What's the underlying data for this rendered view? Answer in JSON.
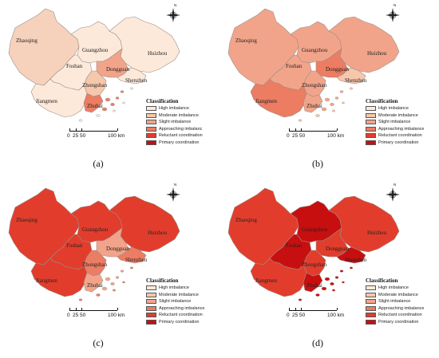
{
  "legend": {
    "title": "Classification",
    "items": [
      {
        "label": "High imbalance",
        "color": "#fde9da"
      },
      {
        "label": "Moderate imbalance",
        "color": "#f6c7ab"
      },
      {
        "label": "Slight imbalance",
        "color": "#f2a48a"
      },
      {
        "label": "Approaching imbalanc",
        "color": "#ec7c62"
      },
      {
        "label": "Reluctant coordination",
        "color": "#e23d2c"
      },
      {
        "label": "Primary coordination",
        "color": "#c80f10"
      }
    ]
  },
  "scale": {
    "labels": [
      "0",
      "25",
      "50",
      "100 km"
    ]
  },
  "compass_label": "N",
  "cities": [
    "Zhaoqing",
    "Guangzhou",
    "Huizhou",
    "Foshan",
    "Dongguan",
    "Shenzhen",
    "Zhongshan",
    "Jiangmen",
    "Zhuhai"
  ],
  "panels": [
    {
      "caption": "(a)",
      "legend_labels": [
        "High imbalance",
        "Moderate imbalance",
        "Slight imbalance",
        "Approaching imbalanc",
        "Reluctant coordination",
        "Primary coordination"
      ],
      "fills": {
        "Zhaoqing": "#f6d2bc",
        "Guangzhou": "#fde9da",
        "Huizhou": "#fde9da",
        "Foshan": "#fde9da",
        "Dongguan": "#f2a48a",
        "Shenzhen": "#fde9da",
        "Zhongshan": "#f6c7ab",
        "Jiangmen": "#fde9da",
        "Zhuhai": "#ec7c62"
      }
    },
    {
      "caption": "(b)",
      "legend_labels": [
        "High imbalance",
        "Moderate imbalance",
        "Slight imbalance",
        "Approaching imbalance",
        "Reluctant coordination",
        "Primary coordination"
      ],
      "fills": {
        "Zhaoqing": "#f2a48a",
        "Guangzhou": "#f2a48a",
        "Huizhou": "#f2a48a",
        "Foshan": "#f2a48a",
        "Dongguan": "#ec7c62",
        "Shenzhen": "#f6c7ab",
        "Zhongshan": "#f2a48a",
        "Jiangmen": "#ec7c62",
        "Zhuhai": "#f2a48a"
      }
    },
    {
      "caption": "(c)",
      "legend_labels": [
        "High imbalance",
        "Moderate imbalance",
        "Slight imbalance",
        "Approaching imbalance",
        "Reluctant coordination",
        "Primary coordination"
      ],
      "fills": {
        "Zhaoqing": "#e23d2c",
        "Guangzhou": "#e23d2c",
        "Huizhou": "#e23d2c",
        "Foshan": "#e23d2c",
        "Dongguan": "#f2a48a",
        "Shenzhen": "#ec7c62",
        "Zhongshan": "#ec7c62",
        "Jiangmen": "#e23d2c",
        "Zhuhai": "#f2a48a"
      }
    },
    {
      "caption": "(d)",
      "legend_labels": [
        "High imbalance",
        "Moderate imbalance",
        "Slight imbalance",
        "Approaching imbalance",
        "Reluctant coordination",
        "Primary coordination"
      ],
      "fills": {
        "Zhaoqing": "#e23d2c",
        "Guangzhou": "#c80f10",
        "Huizhou": "#e23d2c",
        "Foshan": "#c80f10",
        "Dongguan": "#e23d2c",
        "Shenzhen": "#c80f10",
        "Zhongshan": "#e23d2c",
        "Jiangmen": "#e23d2c",
        "Zhuhai": "#c80f10"
      }
    }
  ]
}
